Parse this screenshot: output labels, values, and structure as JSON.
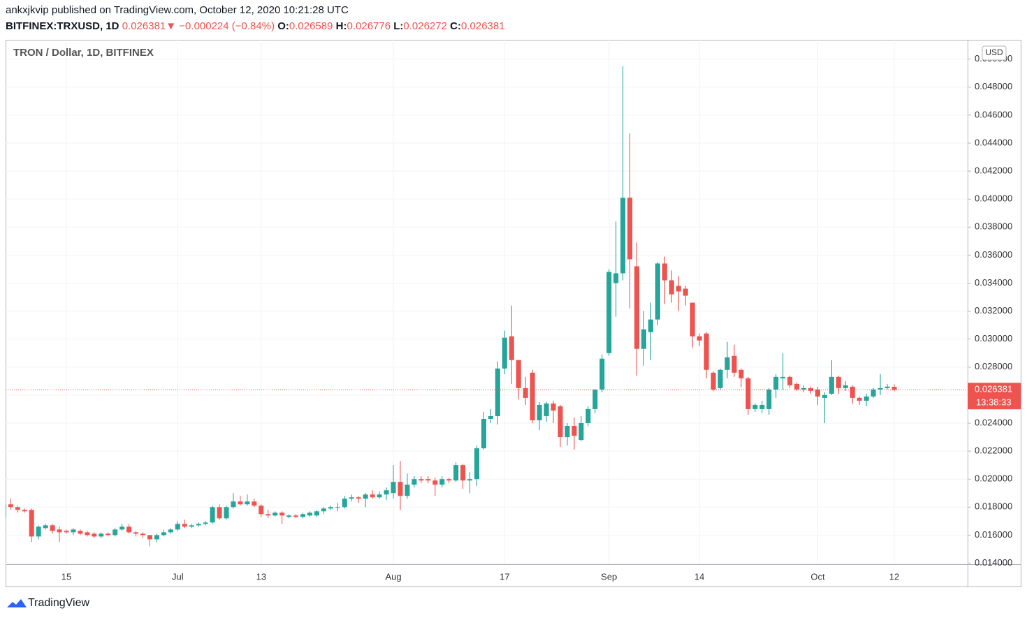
{
  "header": {
    "line1": "ankxjkvip published on TradingView.com, October 12, 2020 10:21:28 UTC",
    "symbol": "BITFINEX:TRXUSD, 1D",
    "last": "0.026381",
    "arrow": "▼",
    "change": "−0.000224 (−0.84%)",
    "ohlc": [
      {
        "label": "O:",
        "value": "0.026589"
      },
      {
        "label": "H:",
        "value": "0.026776"
      },
      {
        "label": "L:",
        "value": "0.026272"
      },
      {
        "label": "C:",
        "value": "0.026381"
      }
    ]
  },
  "footer": {
    "brand": "TradingView"
  },
  "chart_data": {
    "type": "candlestick",
    "title": "TRON / Dollar, 1D, BITFINEX",
    "y_unit": "USD",
    "last_price_label": "0.026381",
    "countdown": "13:38:33",
    "up_color": "#26a69a",
    "down_color": "#ef5350",
    "grid": true,
    "ylim": [
      0.013925,
      0.05138
    ],
    "yticks": [
      {
        "value": 0.014,
        "label": "0.014000"
      },
      {
        "value": 0.016,
        "label": "0.016000"
      },
      {
        "value": 0.018,
        "label": "0.018000"
      },
      {
        "value": 0.02,
        "label": "0.020000"
      },
      {
        "value": 0.022,
        "label": "0.022000"
      },
      {
        "value": 0.024,
        "label": "0.024000"
      },
      {
        "value": 0.026,
        "label": "0.026000"
      },
      {
        "value": 0.028,
        "label": "0.028000"
      },
      {
        "value": 0.03,
        "label": "0.030000"
      },
      {
        "value": 0.032,
        "label": "0.032000"
      },
      {
        "value": 0.034,
        "label": "0.034000"
      },
      {
        "value": 0.036,
        "label": "0.036000"
      },
      {
        "value": 0.038,
        "label": "0.038000"
      },
      {
        "value": 0.04,
        "label": "0.040000"
      },
      {
        "value": 0.042,
        "label": "0.042000"
      },
      {
        "value": 0.044,
        "label": "0.044000"
      },
      {
        "value": 0.046,
        "label": "0.046000"
      },
      {
        "value": 0.048,
        "label": "0.048000"
      },
      {
        "value": 0.05,
        "label": "0.050000"
      }
    ],
    "categories": [
      null,
      null,
      null,
      null,
      null,
      null,
      null,
      null,
      null,
      "15",
      null,
      null,
      null,
      null,
      null,
      null,
      null,
      null,
      null,
      null,
      null,
      null,
      null,
      null,
      null,
      "Jul",
      null,
      null,
      null,
      null,
      null,
      null,
      null,
      null,
      null,
      null,
      null,
      "13",
      null,
      null,
      null,
      null,
      null,
      null,
      null,
      null,
      null,
      null,
      null,
      null,
      null,
      null,
      null,
      null,
      null,
      null,
      "Aug",
      null,
      null,
      null,
      null,
      null,
      null,
      null,
      null,
      null,
      null,
      null,
      null,
      null,
      null,
      null,
      "17",
      null,
      null,
      null,
      null,
      null,
      null,
      null,
      null,
      null,
      null,
      null,
      null,
      null,
      null,
      "Sep",
      null,
      null,
      null,
      null,
      null,
      null,
      null,
      null,
      null,
      null,
      null,
      null,
      "14",
      null,
      null,
      null,
      null,
      null,
      null,
      null,
      null,
      null,
      null,
      null,
      null,
      null,
      null,
      null,
      null,
      "Oct",
      null,
      null,
      null,
      null,
      null,
      null,
      null,
      null,
      null,
      null,
      "12"
    ],
    "open": [
      0.0173,
      0.0182,
      0.018,
      0.0178,
      0.0178,
      0.0159,
      0.0165,
      0.0167,
      0.0164,
      0.0163,
      0.0162,
      0.0163,
      0.0162,
      0.0161,
      0.0159,
      0.0161,
      0.016,
      0.0164,
      0.0166,
      0.0162,
      0.0161,
      0.016,
      0.0157,
      0.016,
      0.0162,
      0.0164,
      0.0168,
      0.0166,
      0.0167,
      0.0168,
      0.0169,
      0.018,
      0.0172,
      0.018,
      0.0184,
      0.0182,
      0.0184,
      0.0181,
      0.0175,
      0.0174,
      0.0176,
      0.0173,
      0.0174,
      0.0173,
      0.0174,
      0.0174,
      0.0177,
      0.0179,
      0.018,
      0.018,
      0.0186,
      0.0187,
      0.0186,
      0.0189,
      0.0187,
      0.0189,
      0.019,
      0.0198,
      0.0188,
      0.0196,
      0.02,
      0.02,
      0.0199,
      0.0196,
      0.02,
      0.0199,
      0.021,
      0.0199,
      0.02,
      0.0222,
      0.0243,
      0.0245,
      0.0279,
      0.0302,
      0.0285,
      0.0265,
      0.0276,
      0.0242,
      0.0245,
      0.0254,
      0.0252,
      0.023,
      0.0238,
      0.0228,
      0.024,
      0.025,
      0.0264,
      0.029,
      0.034,
      0.0347,
      0.0401,
      0.0352,
      0.0293,
      0.0305,
      0.0314,
      0.0354,
      0.0342,
      0.0338,
      0.0336,
      0.0326,
      0.0302,
      0.0304,
      0.0276,
      0.0265,
      0.0278,
      0.0288,
      0.0278,
      0.0272,
      0.025,
      0.025,
      0.025,
      0.0264,
      0.0272,
      0.0273,
      0.0268,
      0.0264,
      0.0265,
      0.0264,
      0.0258,
      0.0261,
      0.0273,
      0.0265,
      0.0266,
      0.0258,
      0.0256,
      0.0259,
      0.0264,
      0.0265,
      0.026589
    ],
    "high": [
      0.0183,
      0.0186,
      0.0181,
      0.0179,
      0.0179,
      0.0167,
      0.0168,
      0.0168,
      0.0166,
      0.0164,
      0.0165,
      0.0164,
      0.0163,
      0.0162,
      0.0162,
      0.0162,
      0.0165,
      0.0168,
      0.0168,
      0.0163,
      0.0162,
      0.016,
      0.0161,
      0.0164,
      0.0165,
      0.017,
      0.0171,
      0.0168,
      0.0169,
      0.017,
      0.0181,
      0.0182,
      0.0181,
      0.019,
      0.0188,
      0.0189,
      0.0186,
      0.0182,
      0.0178,
      0.0177,
      0.0177,
      0.0175,
      0.0175,
      0.0176,
      0.0177,
      0.0178,
      0.018,
      0.0181,
      0.0183,
      0.0188,
      0.0189,
      0.0188,
      0.019,
      0.0192,
      0.0191,
      0.0194,
      0.021,
      0.0213,
      0.0204,
      0.0202,
      0.0202,
      0.0202,
      0.0201,
      0.0202,
      0.0201,
      0.0212,
      0.0211,
      0.0205,
      0.0224,
      0.0248,
      0.025,
      0.0284,
      0.0306,
      0.0324,
      0.0285,
      0.0273,
      0.0278,
      0.0255,
      0.0255,
      0.0256,
      0.0253,
      0.024,
      0.0244,
      0.0245,
      0.0252,
      0.0264,
      0.0289,
      0.035,
      0.0384,
      0.0495,
      0.0447,
      0.0369,
      0.032,
      0.0326,
      0.0355,
      0.0359,
      0.0349,
      0.0345,
      0.0338,
      0.0326,
      0.0304,
      0.0305,
      0.0277,
      0.0279,
      0.0298,
      0.0296,
      0.0279,
      0.0273,
      0.0254,
      0.0256,
      0.0265,
      0.0275,
      0.029,
      0.0274,
      0.0269,
      0.0267,
      0.0266,
      0.0266,
      0.0262,
      0.0285,
      0.0274,
      0.027,
      0.0267,
      0.0259,
      0.0261,
      0.0265,
      0.0275,
      0.0268,
      0.026776
    ],
    "low": [
      0.017,
      0.0178,
      0.0176,
      0.0176,
      0.0155,
      0.0157,
      0.0164,
      0.0161,
      0.0155,
      0.0161,
      0.016,
      0.016,
      0.0159,
      0.0158,
      0.0158,
      0.0159,
      0.0159,
      0.0163,
      0.0161,
      0.0159,
      0.0158,
      0.0152,
      0.0155,
      0.0159,
      0.0161,
      0.0163,
      0.0165,
      0.0165,
      0.0166,
      0.0167,
      0.0168,
      0.0171,
      0.0171,
      0.0179,
      0.0181,
      0.0181,
      0.018,
      0.0173,
      0.0172,
      0.0173,
      0.0168,
      0.0172,
      0.0172,
      0.0172,
      0.0173,
      0.0173,
      0.0175,
      0.0178,
      0.0177,
      0.0179,
      0.0184,
      0.0183,
      0.018,
      0.0186,
      0.0186,
      0.0185,
      0.0186,
      0.0178,
      0.0186,
      0.0194,
      0.0197,
      0.0197,
      0.0188,
      0.0194,
      0.0197,
      0.0198,
      0.0193,
      0.019,
      0.0195,
      0.0221,
      0.024,
      0.0239,
      0.0275,
      0.0268,
      0.0257,
      0.0253,
      0.024,
      0.0235,
      0.0241,
      0.024,
      0.0223,
      0.0224,
      0.0221,
      0.0227,
      0.0238,
      0.0247,
      0.0262,
      0.0288,
      0.0316,
      0.0342,
      0.0322,
      0.0274,
      0.0281,
      0.0285,
      0.031,
      0.0325,
      0.0326,
      0.032,
      0.0324,
      0.0294,
      0.0295,
      0.0272,
      0.0263,
      0.0264,
      0.0272,
      0.0273,
      0.0266,
      0.0246,
      0.0248,
      0.0247,
      0.0246,
      0.0258,
      0.0264,
      0.0265,
      0.0263,
      0.0262,
      0.0261,
      0.0253,
      0.024,
      0.026,
      0.0261,
      0.0263,
      0.0254,
      0.0253,
      0.0252,
      0.0258,
      0.026,
      0.0264,
      0.026272
    ],
    "close": [
      0.0182,
      0.018,
      0.0178,
      0.0177,
      0.0159,
      0.0166,
      0.0167,
      0.0163,
      0.0162,
      0.0162,
      0.0164,
      0.0161,
      0.016,
      0.0159,
      0.0161,
      0.016,
      0.0164,
      0.0166,
      0.0162,
      0.0161,
      0.016,
      0.0157,
      0.016,
      0.0162,
      0.0164,
      0.0168,
      0.0166,
      0.0167,
      0.0168,
      0.0169,
      0.018,
      0.0172,
      0.018,
      0.0184,
      0.0182,
      0.0184,
      0.0181,
      0.0175,
      0.0174,
      0.0176,
      0.0174,
      0.0174,
      0.0173,
      0.0175,
      0.0176,
      0.0177,
      0.0179,
      0.018,
      0.018,
      0.0186,
      0.0187,
      0.0186,
      0.0189,
      0.0187,
      0.0189,
      0.0192,
      0.0198,
      0.0188,
      0.0196,
      0.02,
      0.0199,
      0.0199,
      0.0196,
      0.02,
      0.0199,
      0.021,
      0.0199,
      0.02,
      0.0222,
      0.0243,
      0.0245,
      0.0279,
      0.0301,
      0.0285,
      0.0265,
      0.0258,
      0.0242,
      0.0253,
      0.0254,
      0.0249,
      0.023,
      0.0238,
      0.0231,
      0.024,
      0.025,
      0.0264,
      0.0286,
      0.0348,
      0.0347,
      0.0401,
      0.0357,
      0.0293,
      0.0307,
      0.0314,
      0.0354,
      0.0342,
      0.0332,
      0.0334,
      0.0331,
      0.0302,
      0.0299,
      0.0278,
      0.0264,
      0.0278,
      0.0287,
      0.0276,
      0.0272,
      0.025,
      0.0253,
      0.0253,
      0.0264,
      0.0273,
      0.0273,
      0.0267,
      0.0264,
      0.0265,
      0.0263,
      0.0259,
      0.026,
      0.0273,
      0.0265,
      0.0267,
      0.0258,
      0.0256,
      0.0259,
      0.0264,
      0.0265,
      0.026605,
      0.026381
    ]
  }
}
